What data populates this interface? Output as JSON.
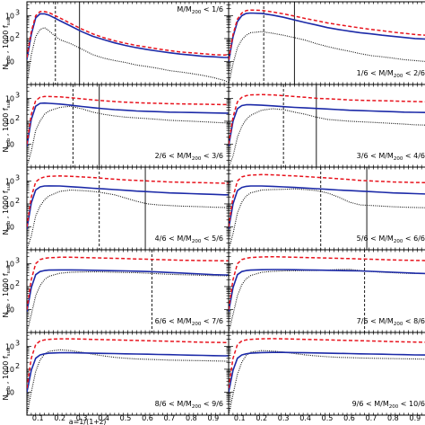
{
  "chart_data": {
    "type": "line",
    "grid": false,
    "layout": "5 rows x 2 columns of panels sharing x axis",
    "x_range": [
      0.05,
      0.97
    ],
    "x_ticks": [
      0.1,
      0.2,
      0.3,
      0.4,
      0.5,
      0.6,
      0.7,
      0.8,
      0.9
    ],
    "x_tick_labels": [
      "0.1",
      "0.2",
      "0.3",
      "0.4",
      "0.5",
      "0.6",
      "0.7",
      "0.8",
      "0.9"
    ],
    "y_scale": "log",
    "y_range": [
      1,
      4000
    ],
    "y_ticks": [
      10,
      100,
      1000
    ],
    "y_tick_labels": [
      "10",
      "10",
      "10"
    ],
    "y_tick_exponents": [
      "",
      "2",
      "3"
    ],
    "xlabel_text": "a=1/(1+z)",
    "ylabel": {
      "a": "N",
      "a_sub": "sub",
      "b": " , 1000 f",
      "b_sub": "sub"
    },
    "series_styles": [
      {
        "key": "red",
        "color": "#e8141e",
        "dash": "4,2.5",
        "width": 1.5
      },
      {
        "key": "blue",
        "color": "#1c2aa8",
        "dash": "",
        "width": 1.6
      },
      {
        "key": "black",
        "color": "#111111",
        "dash": "1,1.3",
        "width": 1.1
      }
    ],
    "panels": [
      {
        "label": {
          "pre": "",
          "mid": "M/M",
          "sub": "200",
          "post": " < 1/6"
        },
        "label_pos": "top-right",
        "vline_dashed": 0.18,
        "vline_solid": 0.29,
        "x": [
          0.05,
          0.07,
          0.09,
          0.11,
          0.13,
          0.15,
          0.17,
          0.2,
          0.25,
          0.3,
          0.35,
          0.4,
          0.45,
          0.5,
          0.55,
          0.6,
          0.65,
          0.7,
          0.75,
          0.8,
          0.85,
          0.9,
          0.95,
          0.97
        ],
        "red": [
          15,
          200,
          1000,
          1500,
          1500,
          1350,
          1100,
          800,
          450,
          260,
          160,
          110,
          80,
          62,
          50,
          42,
          35,
          30,
          26,
          24,
          22,
          20,
          19,
          20
        ],
        "blue": [
          12,
          150,
          800,
          1200,
          1200,
          1050,
          850,
          600,
          350,
          200,
          125,
          90,
          65,
          50,
          40,
          33,
          28,
          24,
          21,
          19,
          17,
          16,
          15,
          15
        ],
        "black": [
          1,
          20,
          120,
          250,
          300,
          220,
          150,
          90,
          60,
          35,
          20,
          14,
          11,
          9,
          7,
          6,
          5,
          4,
          3.5,
          3,
          2.5,
          2,
          1.5,
          1.2
        ]
      },
      {
        "label": {
          "pre": "1/6 < ",
          "mid": "M/M",
          "sub": "200",
          "post": " < 2/6"
        },
        "label_pos": "bottom-right",
        "vline_dashed": 0.21,
        "vline_solid": 0.35,
        "x": [
          0.05,
          0.07,
          0.09,
          0.11,
          0.13,
          0.15,
          0.2,
          0.25,
          0.3,
          0.35,
          0.4,
          0.45,
          0.5,
          0.55,
          0.6,
          0.65,
          0.7,
          0.75,
          0.8,
          0.85,
          0.9,
          0.95,
          0.97
        ],
        "red": [
          12,
          150,
          700,
          1300,
          1650,
          1750,
          1700,
          1450,
          1200,
          950,
          750,
          600,
          480,
          400,
          340,
          290,
          250,
          220,
          190,
          170,
          150,
          140,
          140
        ],
        "blue": [
          10,
          120,
          550,
          1000,
          1250,
          1300,
          1250,
          1050,
          850,
          650,
          500,
          390,
          300,
          250,
          210,
          180,
          160,
          140,
          125,
          112,
          100,
          95,
          95
        ],
        "black": [
          1,
          8,
          40,
          90,
          140,
          180,
          200,
          170,
          140,
          110,
          85,
          60,
          45,
          35,
          28,
          22,
          18,
          16,
          14,
          12,
          11,
          10,
          10
        ]
      },
      {
        "label": {
          "pre": "2/6 < ",
          "mid": "M/M",
          "sub": "200",
          "post": " < 3/6"
        },
        "label_pos": "bottom-right",
        "vline_dashed": 0.26,
        "vline_solid": 0.38,
        "x": [
          0.05,
          0.07,
          0.09,
          0.11,
          0.13,
          0.15,
          0.2,
          0.25,
          0.3,
          0.35,
          0.4,
          0.45,
          0.5,
          0.55,
          0.6,
          0.65,
          0.7,
          0.75,
          0.8,
          0.85,
          0.9,
          0.95,
          0.97
        ],
        "red": [
          10,
          200,
          800,
          1100,
          1200,
          1200,
          1150,
          1050,
          950,
          850,
          780,
          720,
          680,
          640,
          620,
          600,
          580,
          570,
          560,
          550,
          540,
          530,
          530
        ],
        "blue": [
          8,
          120,
          450,
          600,
          620,
          600,
          560,
          500,
          440,
          390,
          350,
          320,
          300,
          280,
          270,
          260,
          250,
          245,
          240,
          235,
          230,
          225,
          225
        ],
        "black": [
          1,
          5,
          40,
          100,
          200,
          280,
          400,
          450,
          350,
          250,
          200,
          170,
          150,
          140,
          130,
          120,
          110,
          105,
          100,
          95,
          90,
          85,
          85
        ]
      },
      {
        "label": {
          "pre": "3/6 < ",
          "mid": "M/M",
          "sub": "200",
          "post": " < 4/6"
        },
        "label_pos": "bottom-right",
        "vline_dashed": 0.3,
        "vline_solid": 0.45,
        "x": [
          0.05,
          0.07,
          0.09,
          0.11,
          0.13,
          0.15,
          0.2,
          0.25,
          0.3,
          0.35,
          0.4,
          0.45,
          0.5,
          0.55,
          0.6,
          0.65,
          0.7,
          0.75,
          0.8,
          0.85,
          0.9,
          0.95,
          0.97
        ],
        "red": [
          10,
          150,
          700,
          1100,
          1300,
          1400,
          1450,
          1400,
          1300,
          1200,
          1100,
          1000,
          950,
          900,
          850,
          820,
          800,
          780,
          760,
          740,
          720,
          700,
          700
        ],
        "blue": [
          8,
          100,
          350,
          480,
          520,
          520,
          500,
          470,
          430,
          400,
          380,
          360,
          340,
          320,
          300,
          290,
          280,
          270,
          260,
          250,
          245,
          240,
          240
        ],
        "black": [
          1,
          3,
          20,
          60,
          120,
          180,
          300,
          350,
          320,
          250,
          200,
          150,
          120,
          110,
          100,
          95,
          90,
          85,
          80,
          75,
          70,
          68,
          68
        ]
      },
      {
        "label": {
          "pre": "4/6 < ",
          "mid": "M/M",
          "sub": "200",
          "post": " < 5/6"
        },
        "label_pos": "bottom-right",
        "vline_dashed": 0.38,
        "vline_solid": 0.59,
        "x": [
          0.05,
          0.07,
          0.09,
          0.11,
          0.13,
          0.15,
          0.2,
          0.25,
          0.3,
          0.35,
          0.4,
          0.45,
          0.5,
          0.55,
          0.6,
          0.65,
          0.7,
          0.75,
          0.8,
          0.85,
          0.9,
          0.95,
          0.97
        ],
        "red": [
          10,
          200,
          900,
          1300,
          1500,
          1600,
          1650,
          1600,
          1500,
          1400,
          1300,
          1200,
          1100,
          1050,
          1000,
          950,
          900,
          880,
          860,
          840,
          820,
          800,
          800
        ],
        "blue": [
          8,
          110,
          400,
          550,
          600,
          610,
          600,
          560,
          520,
          480,
          450,
          420,
          390,
          360,
          340,
          320,
          300,
          290,
          280,
          270,
          260,
          250,
          250
        ],
        "black": [
          1,
          4,
          30,
          80,
          150,
          220,
          350,
          400,
          380,
          350,
          300,
          250,
          180,
          130,
          100,
          90,
          85,
          80,
          78,
          75,
          72,
          70,
          70
        ]
      },
      {
        "label": {
          "pre": "5/6 < ",
          "mid": "M/M",
          "sub": "200",
          "post": " < 6/6"
        },
        "label_pos": "bottom-right",
        "vline_dashed": 0.47,
        "vline_solid": 0.68,
        "x": [
          0.05,
          0.07,
          0.09,
          0.11,
          0.13,
          0.15,
          0.2,
          0.25,
          0.3,
          0.35,
          0.4,
          0.45,
          0.5,
          0.55,
          0.6,
          0.65,
          0.7,
          0.75,
          0.8,
          0.85,
          0.9,
          0.95,
          0.97
        ],
        "red": [
          10,
          200,
          1000,
          1500,
          1700,
          1800,
          1900,
          1850,
          1750,
          1650,
          1550,
          1450,
          1350,
          1250,
          1150,
          1050,
          1000,
          950,
          900,
          880,
          860,
          840,
          840
        ],
        "blue": [
          8,
          100,
          380,
          520,
          580,
          600,
          600,
          580,
          550,
          520,
          490,
          460,
          430,
          400,
          380,
          360,
          340,
          320,
          300,
          290,
          280,
          270,
          270
        ],
        "black": [
          1,
          5,
          40,
          120,
          220,
          300,
          400,
          420,
          430,
          450,
          420,
          380,
          300,
          200,
          120,
          90,
          85,
          80,
          75,
          72,
          70,
          68,
          68
        ]
      },
      {
        "label": {
          "pre": "6/6 < ",
          "mid": "M/M",
          "sub": "200",
          "post": " < 7/6"
        },
        "label_pos": "bottom-right",
        "vline_dashed": 0.62,
        "vline_solid": null,
        "x": [
          0.05,
          0.07,
          0.09,
          0.11,
          0.13,
          0.15,
          0.2,
          0.25,
          0.3,
          0.35,
          0.4,
          0.45,
          0.5,
          0.55,
          0.6,
          0.65,
          0.7,
          0.75,
          0.8,
          0.85,
          0.9,
          0.95,
          0.97
        ],
        "red": [
          10,
          200,
          1000,
          1500,
          1700,
          1800,
          1900,
          1900,
          1850,
          1800,
          1750,
          1700,
          1650,
          1600,
          1550,
          1500,
          1450,
          1400,
          1380,
          1360,
          1340,
          1320,
          1320
        ],
        "blue": [
          8,
          90,
          330,
          450,
          500,
          520,
          530,
          530,
          520,
          510,
          500,
          490,
          480,
          470,
          450,
          430,
          410,
          390,
          370,
          350,
          330,
          320,
          320
        ],
        "black": [
          1,
          6,
          40,
          110,
          200,
          280,
          380,
          420,
          430,
          440,
          430,
          420,
          410,
          400,
          380,
          360,
          340,
          330,
          320,
          310,
          300,
          295,
          295
        ]
      },
      {
        "label": {
          "pre": "7/6 < ",
          "mid": "M/M",
          "sub": "200",
          "post": " < 8/6"
        },
        "label_pos": "bottom-right",
        "vline_dashed": 0.67,
        "vline_solid": null,
        "x": [
          0.05,
          0.07,
          0.09,
          0.11,
          0.13,
          0.15,
          0.2,
          0.25,
          0.3,
          0.35,
          0.4,
          0.45,
          0.5,
          0.55,
          0.6,
          0.65,
          0.7,
          0.75,
          0.8,
          0.85,
          0.9,
          0.95,
          0.97
        ],
        "red": [
          10,
          200,
          1000,
          1500,
          1700,
          1850,
          1950,
          2000,
          1950,
          1900,
          1850,
          1800,
          1750,
          1700,
          1650,
          1600,
          1550,
          1500,
          1450,
          1400,
          1380,
          1360,
          1360
        ],
        "blue": [
          8,
          90,
          330,
          450,
          500,
          520,
          540,
          550,
          550,
          540,
          530,
          520,
          510,
          500,
          490,
          480,
          460,
          440,
          420,
          400,
          380,
          370,
          370
        ],
        "black": [
          1,
          6,
          40,
          120,
          220,
          300,
          420,
          460,
          480,
          490,
          500,
          500,
          520,
          550,
          560,
          500,
          450,
          420,
          400,
          380,
          370,
          360,
          360
        ]
      },
      {
        "label": {
          "pre": "8/6 < ",
          "mid": "M/M",
          "sub": "200",
          "post": " < 9/6"
        },
        "label_pos": "bottom-right",
        "vline_dashed": null,
        "vline_solid": null,
        "x": [
          0.05,
          0.07,
          0.09,
          0.11,
          0.13,
          0.15,
          0.2,
          0.25,
          0.3,
          0.35,
          0.4,
          0.45,
          0.5,
          0.55,
          0.6,
          0.65,
          0.7,
          0.75,
          0.8,
          0.85,
          0.9,
          0.95,
          0.97
        ],
        "red": [
          15,
          300,
          1200,
          1700,
          1900,
          2000,
          2100,
          2100,
          2050,
          2000,
          1950,
          1900,
          1850,
          1800,
          1750,
          1700,
          1650,
          1600,
          1550,
          1500,
          1480,
          1460,
          1460
        ],
        "blue": [
          10,
          90,
          300,
          420,
          470,
          500,
          520,
          520,
          510,
          500,
          490,
          480,
          470,
          460,
          450,
          440,
          430,
          420,
          410,
          400,
          390,
          385,
          385
        ],
        "black": [
          1,
          10,
          80,
          250,
          450,
          600,
          700,
          650,
          550,
          450,
          380,
          330,
          300,
          280,
          270,
          260,
          250,
          245,
          240,
          235,
          230,
          225,
          225
        ]
      },
      {
        "label": {
          "pre": "9/6 < ",
          "mid": "M/M",
          "sub": "200",
          "post": " < 10/6"
        },
        "label_pos": "bottom-right",
        "vline_dashed": null,
        "vline_solid": null,
        "x": [
          0.05,
          0.07,
          0.09,
          0.11,
          0.13,
          0.15,
          0.2,
          0.25,
          0.3,
          0.35,
          0.4,
          0.45,
          0.5,
          0.55,
          0.6,
          0.65,
          0.7,
          0.75,
          0.8,
          0.85,
          0.9,
          0.95,
          0.97
        ],
        "red": [
          15,
          300,
          1200,
          1700,
          1900,
          2000,
          2100,
          2150,
          2100,
          2050,
          2000,
          1950,
          1900,
          1850,
          1800,
          1750,
          1700,
          1650,
          1600,
          1550,
          1520,
          1500,
          1500
        ],
        "blue": [
          10,
          90,
          300,
          420,
          470,
          500,
          530,
          540,
          540,
          530,
          520,
          510,
          500,
          490,
          480,
          470,
          460,
          450,
          440,
          430,
          420,
          415,
          415
        ],
        "black": [
          1,
          8,
          60,
          200,
          400,
          550,
          650,
          620,
          560,
          480,
          420,
          380,
          350,
          330,
          320,
          310,
          300,
          295,
          290,
          285,
          280,
          275,
          275
        ]
      }
    ]
  }
}
